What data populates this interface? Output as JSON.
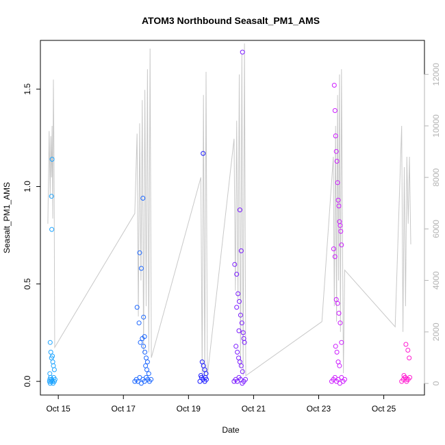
{
  "chart_data": {
    "type": "scatter",
    "title": "ATOM3 Northbound Seasalt_PM1_AMS",
    "xlabel": "Date",
    "ylabel": "Seasalt_PM1_AMS",
    "x_ticks": [
      "Oct 15",
      "Oct 17",
      "Oct 19",
      "Oct 21",
      "Oct 23",
      "Oct 25"
    ],
    "x_tick_days": [
      15,
      17,
      19,
      21,
      23,
      25
    ],
    "xlim": [
      14.45,
      26.25
    ],
    "y_ticks": [
      "0.0",
      "0.5",
      "1.0",
      "1.5"
    ],
    "y_tick_values": [
      0,
      0.5,
      1.0,
      1.5
    ],
    "ylim": [
      -0.07,
      1.75
    ],
    "y2_ticks": [
      "0",
      "2000",
      "4000",
      "6000",
      "8000",
      "10000",
      "12000"
    ],
    "y2_tick_values": [
      0,
      2000,
      4000,
      6000,
      8000,
      10000,
      12000
    ],
    "y2lim": [
      -450,
      13320
    ],
    "colors": {
      "altitude_line": "#c8c8c8",
      "right_axis": "#b3b3b3",
      "flight1": "#1aa3ff",
      "flight2": "#1a66ff",
      "flight3": "#1a1aff",
      "flight4": "#7a1aff",
      "flight5": "#cc1aff",
      "flight6": "#ff1ad1"
    },
    "altitude_profile": [
      [
        14.68,
        6200
      ],
      [
        14.72,
        9800
      ],
      [
        14.75,
        7200
      ],
      [
        14.77,
        9600
      ],
      [
        14.79,
        8000
      ],
      [
        14.81,
        10000
      ],
      [
        14.83,
        6400
      ],
      [
        14.85,
        11800
      ],
      [
        14.87,
        8500
      ],
      [
        14.89,
        1400
      ],
      [
        17.35,
        6600
      ],
      [
        17.42,
        9700
      ],
      [
        17.46,
        2600
      ],
      [
        17.5,
        10100
      ],
      [
        17.54,
        4000
      ],
      [
        17.58,
        11000
      ],
      [
        17.62,
        1200
      ],
      [
        17.66,
        11400
      ],
      [
        17.7,
        3000
      ],
      [
        17.74,
        12200
      ],
      [
        17.78,
        1200
      ],
      [
        17.82,
        13000
      ],
      [
        17.86,
        1000
      ],
      [
        19.38,
        8000
      ],
      [
        19.42,
        300
      ],
      [
        19.46,
        11200
      ],
      [
        19.5,
        200
      ],
      [
        19.54,
        12100
      ],
      [
        19.58,
        300
      ],
      [
        20.4,
        9500
      ],
      [
        20.44,
        3600
      ],
      [
        20.48,
        10200
      ],
      [
        20.52,
        3200
      ],
      [
        20.56,
        12000
      ],
      [
        20.6,
        600
      ],
      [
        20.64,
        12800
      ],
      [
        20.68,
        300
      ],
      [
        20.72,
        13200
      ],
      [
        20.76,
        300
      ],
      [
        23.1,
        2400
      ],
      [
        23.45,
        8800
      ],
      [
        23.48,
        3000
      ],
      [
        23.52,
        10000
      ],
      [
        23.55,
        2400
      ],
      [
        23.58,
        11200
      ],
      [
        23.61,
        4000
      ],
      [
        23.64,
        12000
      ],
      [
        23.67,
        2000
      ],
      [
        23.7,
        12200
      ],
      [
        23.73,
        6000
      ],
      [
        23.76,
        400
      ],
      [
        23.8,
        4400
      ],
      [
        25.35,
        2200
      ],
      [
        25.55,
        10000
      ],
      [
        25.59,
        2000
      ],
      [
        25.63,
        8400
      ],
      [
        25.67,
        3000
      ],
      [
        25.71,
        8800
      ],
      [
        25.75,
        6200
      ],
      [
        25.79,
        8800
      ],
      [
        25.83,
        5400
      ]
    ],
    "series": [
      {
        "flight": "1",
        "x": [
          14.73,
          14.74,
          14.75,
          14.76,
          14.78,
          14.8,
          14.82,
          14.84,
          14.86,
          14.88,
          14.9,
          14.75,
          14.77,
          14.79,
          14.83,
          14.85,
          14.88,
          14.74,
          14.79,
          14.8,
          14.81,
          14.82
        ],
        "y": [
          0.0,
          0.01,
          -0.01,
          0.02,
          0.0,
          0.01,
          0.0,
          -0.01,
          0.02,
          0.0,
          0.01,
          0.2,
          0.15,
          0.12,
          0.1,
          0.08,
          0.06,
          0.04,
          0.95,
          0.78,
          1.14,
          0.13
        ]
      },
      {
        "flight": "2",
        "x": [
          17.35,
          17.4,
          17.45,
          17.5,
          17.55,
          17.6,
          17.65,
          17.7,
          17.75,
          17.8,
          17.85,
          17.42,
          17.48,
          17.52,
          17.58,
          17.62,
          17.66,
          17.7,
          17.74,
          17.5,
          17.55,
          17.6,
          17.65,
          17.68,
          17.72,
          17.78,
          17.62
        ],
        "y": [
          0.0,
          0.01,
          0.0,
          0.02,
          -0.01,
          0.01,
          0.0,
          0.02,
          0.01,
          0.0,
          0.01,
          0.38,
          0.3,
          0.2,
          0.22,
          0.18,
          0.15,
          0.12,
          0.1,
          0.66,
          0.58,
          0.94,
          0.23,
          0.08,
          0.06,
          0.04,
          0.33
        ]
      },
      {
        "flight": "3",
        "x": [
          19.35,
          19.4,
          19.45,
          19.5,
          19.55,
          19.42,
          19.46,
          19.5,
          19.54,
          19.38,
          19.45,
          19.52
        ],
        "y": [
          0.0,
          0.02,
          0.01,
          0.0,
          0.01,
          0.1,
          0.08,
          0.06,
          0.04,
          0.03,
          1.17,
          0.02
        ]
      },
      {
        "flight": "4",
        "x": [
          20.4,
          20.45,
          20.5,
          20.55,
          20.6,
          20.65,
          20.7,
          20.75,
          20.42,
          20.48,
          20.52,
          20.56,
          20.6,
          20.64,
          20.68,
          20.72,
          20.46,
          20.5,
          20.54,
          20.58,
          20.62,
          20.66,
          20.7,
          20.58,
          20.62,
          20.66,
          20.55,
          20.48
        ],
        "y": [
          0.0,
          0.01,
          0.0,
          0.02,
          0.01,
          -0.01,
          0.0,
          0.01,
          0.6,
          0.55,
          0.45,
          0.41,
          0.34,
          0.3,
          0.25,
          0.2,
          0.18,
          0.15,
          0.12,
          0.1,
          0.08,
          0.05,
          0.22,
          0.88,
          0.67,
          1.69,
          0.26,
          0.38
        ]
      },
      {
        "flight": "5",
        "x": [
          23.4,
          23.45,
          23.5,
          23.55,
          23.6,
          23.65,
          23.7,
          23.75,
          23.8,
          23.48,
          23.5,
          23.52,
          23.54,
          23.56,
          23.58,
          23.6,
          23.62,
          23.64,
          23.66,
          23.68,
          23.7,
          23.46,
          23.5,
          23.54,
          23.58,
          23.62,
          23.66,
          23.7,
          23.52,
          23.56,
          23.6,
          23.64
        ],
        "y": [
          0.0,
          0.01,
          0.02,
          0.0,
          0.01,
          -0.01,
          0.02,
          0.0,
          0.01,
          1.52,
          1.39,
          1.26,
          1.18,
          1.13,
          1.02,
          0.93,
          0.9,
          0.82,
          0.8,
          0.77,
          0.7,
          0.68,
          0.64,
          0.42,
          0.4,
          0.35,
          0.3,
          0.2,
          0.18,
          0.15,
          0.1,
          0.08
        ]
      },
      {
        "flight": "6",
        "x": [
          25.55,
          25.6,
          25.65,
          25.7,
          25.75,
          25.8,
          25.62,
          25.66,
          25.7,
          25.74,
          25.78,
          25.68
        ],
        "y": [
          0.0,
          0.01,
          0.02,
          0.0,
          0.01,
          0.02,
          0.03,
          0.02,
          0.01,
          0.16,
          0.12,
          0.19
        ]
      }
    ]
  }
}
